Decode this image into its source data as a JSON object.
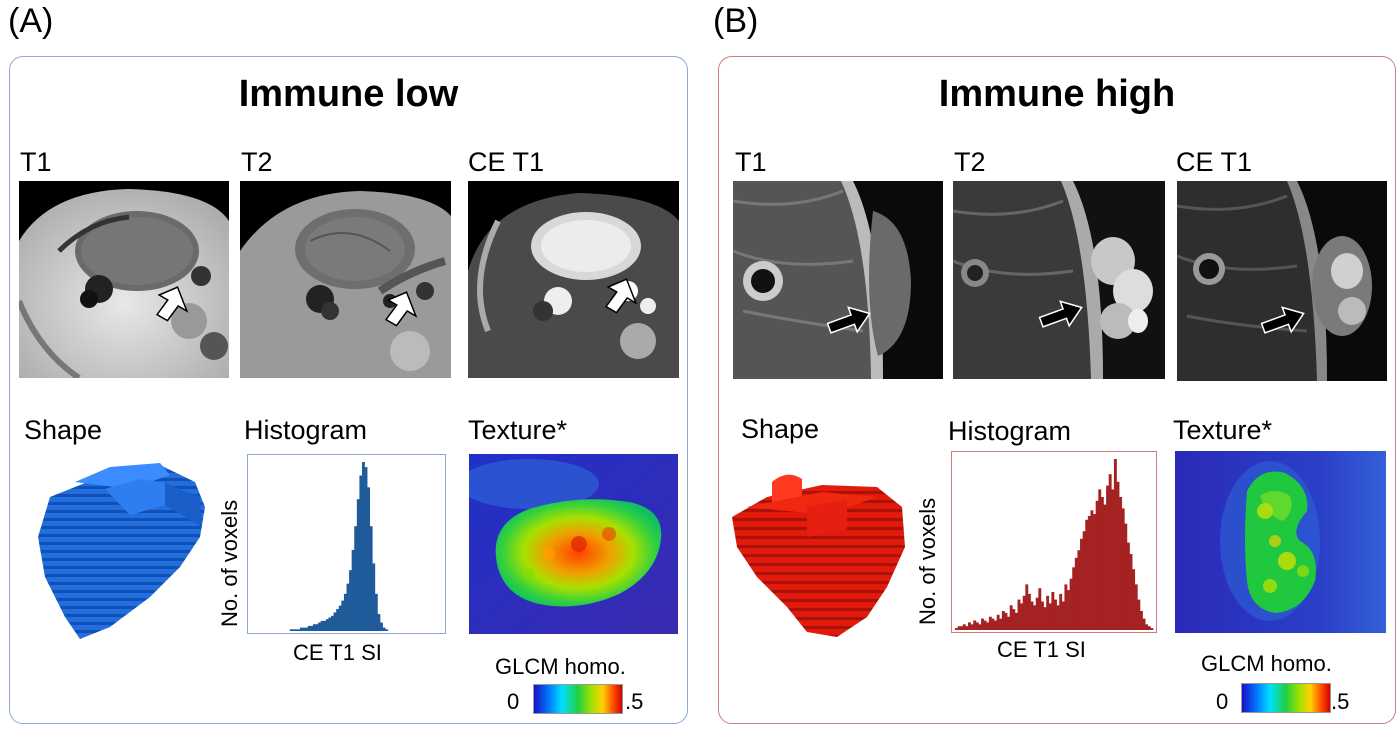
{
  "panel_a": {
    "letter": "(A)",
    "title": "Immune low",
    "mri_labels": [
      "T1",
      "T2",
      "CE T1"
    ],
    "feature_labels": {
      "shape": "Shape",
      "histogram": "Histogram",
      "texture": "Texture*"
    },
    "histogram": {
      "ylabel": "No. of voxels",
      "xlabel": "CE T1 SI",
      "color": "#1f5b9a"
    },
    "colorbar": {
      "title": "GLCM homo.",
      "min": "0",
      "max": ".5"
    },
    "arrow_color": "white",
    "shape_color": "#1f6fe0"
  },
  "panel_b": {
    "letter": "(B)",
    "title": "Immune high",
    "mri_labels": [
      "T1",
      "T2",
      "CE T1"
    ],
    "feature_labels": {
      "shape": "Shape",
      "histogram": "Histogram",
      "texture": "Texture*"
    },
    "histogram": {
      "ylabel": "No. of voxels",
      "xlabel": "CE T1 SI",
      "color": "#a52222"
    },
    "colorbar": {
      "title": "GLCM homo.",
      "min": "0",
      "max": ".5"
    },
    "arrow_color": "black",
    "shape_color": "#e02010"
  },
  "chart_data": [
    {
      "type": "bar",
      "title": "Histogram",
      "xlabel": "CE T1 SI",
      "ylabel": "No. of voxels",
      "values": [
        0,
        0,
        0,
        0,
        0,
        0,
        0,
        0,
        0,
        0,
        0,
        0,
        0,
        0,
        0,
        1,
        1,
        1,
        1,
        2,
        2,
        2,
        3,
        3,
        4,
        4,
        5,
        6,
        6,
        7,
        8,
        9,
        11,
        13,
        15,
        18,
        22,
        28,
        36,
        48,
        62,
        78,
        92,
        100,
        97,
        85,
        62,
        40,
        22,
        10,
        5,
        2,
        1,
        0,
        0,
        0,
        0,
        0,
        0,
        0,
        0,
        0,
        0,
        0,
        0,
        0,
        0,
        0,
        0,
        0,
        0,
        0,
        0,
        0
      ]
    },
    {
      "type": "bar",
      "title": "Histogram",
      "xlabel": "CE T1 SI",
      "ylabel": "No. of voxels",
      "values": [
        1,
        2,
        2,
        3,
        2,
        4,
        3,
        5,
        4,
        3,
        6,
        5,
        4,
        7,
        6,
        5,
        8,
        6,
        10,
        9,
        7,
        13,
        11,
        9,
        16,
        14,
        18,
        24,
        19,
        15,
        13,
        17,
        22,
        15,
        12,
        18,
        14,
        20,
        16,
        13,
        19,
        15,
        24,
        21,
        27,
        33,
        38,
        42,
        48,
        52,
        58,
        60,
        63,
        61,
        68,
        74,
        70,
        66,
        76,
        82,
        74,
        90,
        78,
        70,
        64,
        56,
        46,
        40,
        32,
        24,
        16,
        10,
        6,
        3,
        2,
        1
      ]
    }
  ]
}
